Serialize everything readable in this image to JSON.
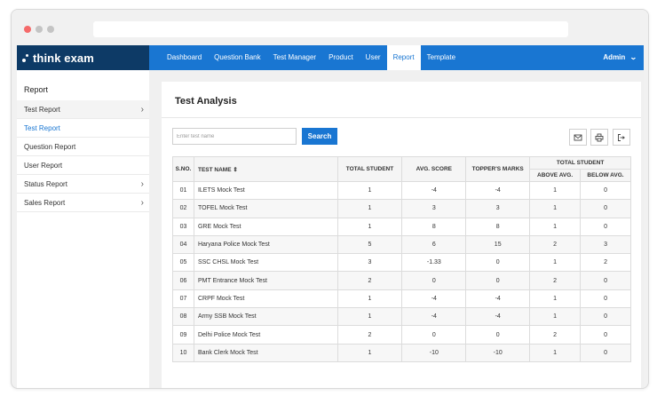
{
  "app": {
    "logo_text": "think exam"
  },
  "nav": {
    "items": [
      "Dashboard",
      "Question Bank",
      "Test Manager",
      "Product",
      "User",
      "Report",
      "Template"
    ],
    "active": "Report",
    "user": "Admin"
  },
  "sidebar": {
    "title": "Report",
    "items": [
      {
        "label": "Test Report",
        "has_chevron": true
      },
      {
        "label": "Test Report",
        "has_chevron": false,
        "active": true
      },
      {
        "label": "Question Report",
        "has_chevron": false
      },
      {
        "label": "User Report",
        "has_chevron": false
      },
      {
        "label": "Status Report",
        "has_chevron": true
      },
      {
        "label": "Sales Report",
        "has_chevron": true
      }
    ]
  },
  "main": {
    "title": "Test Analysis",
    "search": {
      "placeholder": "Enter test name",
      "button_label": "Search"
    },
    "actions": [
      "mail-icon",
      "print-icon",
      "export-icon"
    ],
    "table": {
      "headers": {
        "sno": "S.NO.",
        "name": "TEST NAME",
        "total": "TOTAL STUDENT",
        "avg": "AVG. SCORE",
        "topper": "TOPPER'S MARKS",
        "group": "TOTAL STUDENT",
        "above": "ABOVE AVG.",
        "below": "BELOW AVG."
      },
      "rows": [
        [
          "01",
          "ILETS Mock Test",
          "1",
          "-4",
          "-4",
          "1",
          "0"
        ],
        [
          "02",
          "TOFEL Mock Test",
          "1",
          "3",
          "3",
          "1",
          "0"
        ],
        [
          "03",
          "GRE Mock Test",
          "1",
          "8",
          "8",
          "1",
          "0"
        ],
        [
          "04",
          "Haryana Police Mock Test",
          "5",
          "6",
          "15",
          "2",
          "3"
        ],
        [
          "05",
          "SSC CHSL Mock Test",
          "3",
          "-1.33",
          "0",
          "1",
          "2"
        ],
        [
          "06",
          "PMT Entrance Mock Test",
          "2",
          "0",
          "0",
          "2",
          "0"
        ],
        [
          "07",
          "CRPF Mock Test",
          "1",
          "-4",
          "-4",
          "1",
          "0"
        ],
        [
          "08",
          "Army SSB Mock Test",
          "1",
          "-4",
          "-4",
          "1",
          "0"
        ],
        [
          "09",
          "Delhi Police Mock Test",
          "2",
          "0",
          "0",
          "2",
          "0"
        ],
        [
          "10",
          "Bank Clerk Mock Test",
          "1",
          "-10",
          "-10",
          "1",
          "0"
        ]
      ]
    }
  },
  "colors": {
    "brand": "#1976d2",
    "logo_bg": "#0d3a66"
  }
}
